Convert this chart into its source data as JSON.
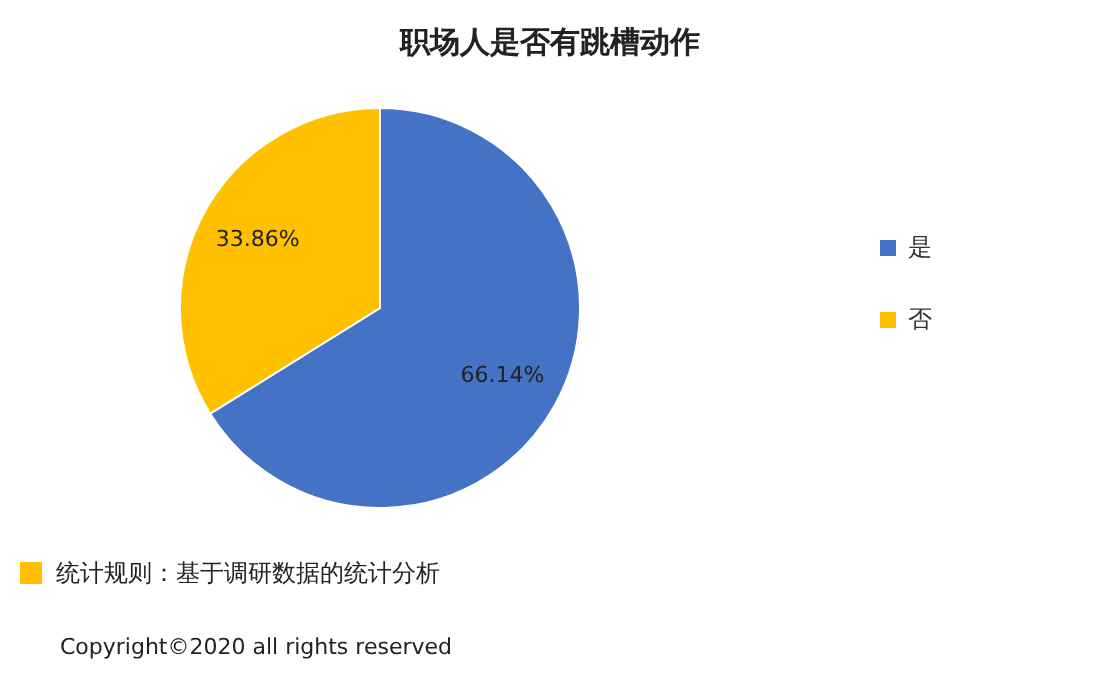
{
  "chart_data": {
    "type": "pie",
    "title": "职场人是否有跳槽动作",
    "categories": [
      "是",
      "否"
    ],
    "values": [
      66.14,
      33.86
    ],
    "colors": [
      "#4472c4",
      "#ffc000"
    ],
    "value_labels": [
      "66.14%",
      "33.86%"
    ],
    "legend": "right",
    "annotations": [
      "统计规则：基于调研数据的统计分析",
      "Copyright©2020 all rights reserved"
    ]
  }
}
